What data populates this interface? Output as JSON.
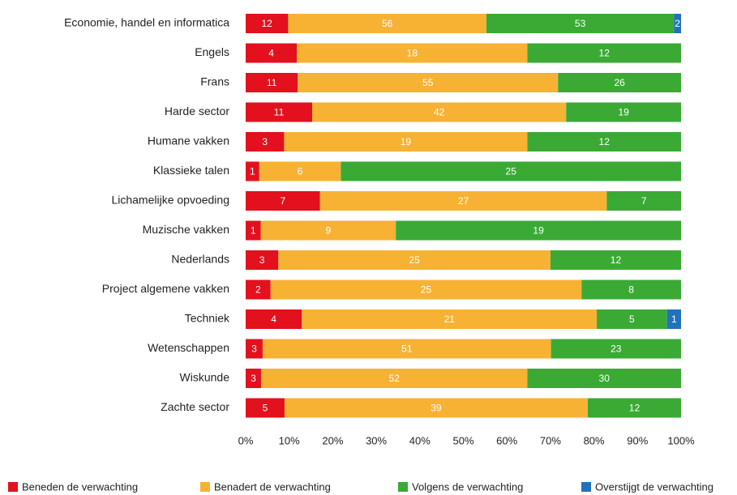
{
  "chart_data": {
    "type": "bar",
    "orientation": "horizontal",
    "stacked": "percent",
    "categories": [
      "Economie, handel en informatica",
      "Engels",
      "Frans",
      "Harde sector",
      "Humane vakken",
      "Klassieke talen",
      "Lichamelijke opvoeding",
      "Muzische vakken",
      "Nederlands",
      "Project algemene vakken",
      "Techniek",
      "Wetenschappen",
      "Wiskunde",
      "Zachte sector"
    ],
    "series": [
      {
        "name": "Beneden de verwachting",
        "color": "#e3101e",
        "values": [
          12,
          4,
          11,
          11,
          3,
          1,
          7,
          1,
          3,
          2,
          4,
          3,
          3,
          5
        ]
      },
      {
        "name": "Benadert de verwachting",
        "color": "#f7b234",
        "values": [
          56,
          18,
          55,
          42,
          19,
          6,
          27,
          9,
          25,
          25,
          21,
          51,
          52,
          39
        ]
      },
      {
        "name": "Volgens de verwachting",
        "color": "#3aaa35",
        "values": [
          53,
          12,
          26,
          19,
          12,
          25,
          7,
          19,
          12,
          8,
          5,
          23,
          30,
          12
        ]
      },
      {
        "name": "Overstijgt de verwachting",
        "color": "#2372b9",
        "values": [
          2,
          null,
          null,
          null,
          null,
          null,
          null,
          null,
          null,
          null,
          1,
          null,
          null,
          null
        ]
      }
    ],
    "xlim": [
      0,
      100
    ],
    "xticks": [
      {
        "value": 0,
        "label": "0%"
      },
      {
        "value": 10,
        "label": "10%"
      },
      {
        "value": 20,
        "label": "20%"
      },
      {
        "value": 30,
        "label": "30%"
      },
      {
        "value": 40,
        "label": "40%"
      },
      {
        "value": 50,
        "label": "50%"
      },
      {
        "value": 60,
        "label": "60%"
      },
      {
        "value": 70,
        "label": "70%"
      },
      {
        "value": 80,
        "label": "80%"
      },
      {
        "value": 90,
        "label": "90%"
      },
      {
        "value": 100,
        "label": "100%"
      }
    ],
    "legend": "bottom"
  }
}
